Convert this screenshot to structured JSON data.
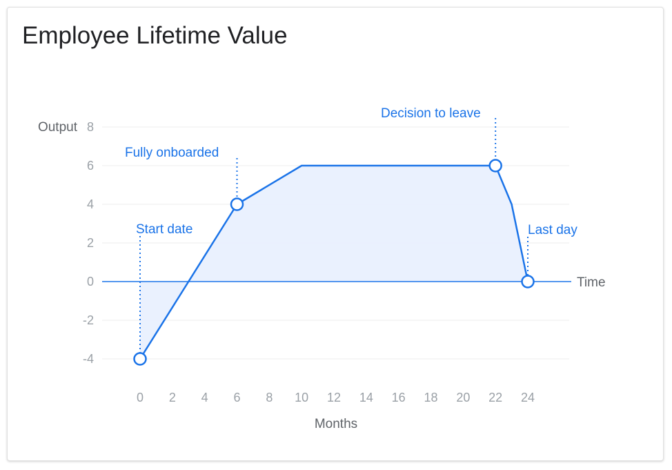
{
  "chart_data": {
    "type": "area",
    "title": "Employee Lifetime Value",
    "ylabel": "Output",
    "xlabel": "Months",
    "baseline_label": "Time",
    "x_ticks": [
      0,
      2,
      4,
      6,
      8,
      10,
      12,
      14,
      16,
      18,
      20,
      22,
      24
    ],
    "y_ticks": [
      -4,
      -2,
      0,
      2,
      4,
      6,
      8
    ],
    "xlim": [
      0,
      24
    ],
    "ylim": [
      -4,
      8
    ],
    "grid": true,
    "series": [
      {
        "x": [
          0,
          6,
          10,
          22,
          23,
          24
        ],
        "y": [
          -4,
          4,
          6,
          6,
          4,
          0
        ]
      }
    ],
    "annotations": [
      {
        "label": "Start date",
        "x": 0,
        "y": -4
      },
      {
        "label": "Fully onboarded",
        "x": 6,
        "y": 4
      },
      {
        "label": "Decision to leave",
        "x": 22,
        "y": 6
      },
      {
        "label": "Last day",
        "x": 24,
        "y": 0
      }
    ],
    "colors": {
      "line": "#1a73e8",
      "fill": "#e8f0fe",
      "annotation": "#1a73e8",
      "grid": "#eeeeee",
      "tick": "#9aa0a6"
    }
  }
}
